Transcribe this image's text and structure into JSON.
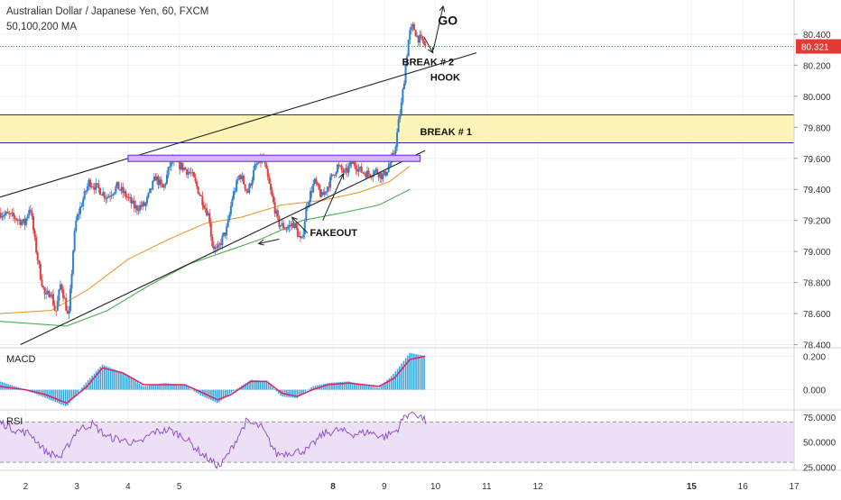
{
  "header": {
    "title": "Australian Dollar / Japanese Yen, 60, FXCM",
    "indicator": "50,100,200 MA"
  },
  "chart_data": {
    "type": "candlestick",
    "symbol": "AUDJPY",
    "timeframe": "60",
    "price_axis": {
      "ticks": [
        78.4,
        78.6,
        78.8,
        79.0,
        79.2,
        79.4,
        79.6,
        79.8,
        80.0,
        80.2,
        80.4
      ],
      "labels": [
        "78.400",
        "78.600",
        "78.800",
        "79.000",
        "79.200",
        "79.400",
        "79.600",
        "79.800",
        "80.000",
        "80.200",
        "80.400"
      ],
      "ylim": [
        78.38,
        80.62
      ]
    },
    "last_price": {
      "value": 80.321,
      "label": "80.321",
      "color": "#e53935"
    },
    "date_axis": {
      "xlim": [
        1.5,
        17.0
      ],
      "ticks": [
        {
          "x": 2,
          "label": "2",
          "bold": false
        },
        {
          "x": 3,
          "label": "3",
          "bold": false
        },
        {
          "x": 4,
          "label": "4",
          "bold": false
        },
        {
          "x": 5,
          "label": "5",
          "bold": false
        },
        {
          "x": 8,
          "label": "8",
          "bold": true
        },
        {
          "x": 9,
          "label": "9",
          "bold": false
        },
        {
          "x": 10,
          "label": "10",
          "bold": false
        },
        {
          "x": 11,
          "label": "11",
          "bold": false
        },
        {
          "x": 12,
          "label": "12",
          "bold": false
        },
        {
          "x": 15,
          "label": "15",
          "bold": true
        },
        {
          "x": 16,
          "label": "16",
          "bold": false
        },
        {
          "x": 17,
          "label": "17",
          "bold": false
        }
      ],
      "gap_positions": [
        5.5,
        12.5
      ]
    },
    "price_path": [
      [
        1.5,
        79.25
      ],
      [
        1.8,
        79.22
      ],
      [
        2.0,
        79.18
      ],
      [
        2.1,
        79.3
      ],
      [
        2.2,
        79.05
      ],
      [
        2.3,
        78.85
      ],
      [
        2.4,
        78.7
      ],
      [
        2.5,
        78.75
      ],
      [
        2.6,
        78.6
      ],
      [
        2.7,
        78.8
      ],
      [
        2.8,
        78.65
      ],
      [
        2.85,
        78.55
      ],
      [
        2.95,
        79.05
      ],
      [
        3.0,
        79.2
      ],
      [
        3.1,
        79.3
      ],
      [
        3.25,
        79.45
      ],
      [
        3.45,
        79.4
      ],
      [
        3.6,
        79.35
      ],
      [
        3.8,
        79.42
      ],
      [
        4.0,
        79.35
      ],
      [
        4.15,
        79.28
      ],
      [
        4.35,
        79.3
      ],
      [
        4.55,
        79.48
      ],
      [
        4.7,
        79.4
      ],
      [
        4.85,
        79.58
      ],
      [
        5.05,
        79.55
      ],
      [
        5.25,
        79.5
      ],
      [
        5.35,
        79.42
      ],
      [
        5.5,
        79.3
      ],
      [
        5.6,
        79.22
      ],
      [
        5.65,
        79.05
      ],
      [
        5.75,
        79.0
      ],
      [
        5.85,
        79.08
      ],
      [
        5.95,
        79.15
      ],
      [
        6.05,
        79.35
      ],
      [
        6.2,
        79.5
      ],
      [
        6.35,
        79.38
      ],
      [
        6.5,
        79.55
      ],
      [
        6.65,
        79.6
      ],
      [
        6.8,
        79.38
      ],
      [
        6.95,
        79.18
      ],
      [
        7.1,
        79.15
      ],
      [
        7.25,
        79.18
      ],
      [
        7.4,
        79.05
      ],
      [
        7.5,
        79.3
      ],
      [
        7.65,
        79.45
      ],
      [
        7.8,
        79.35
      ],
      [
        7.95,
        79.45
      ],
      [
        8.1,
        79.55
      ],
      [
        8.25,
        79.5
      ],
      [
        8.4,
        79.58
      ],
      [
        8.55,
        79.52
      ],
      [
        8.7,
        79.5
      ],
      [
        8.85,
        79.52
      ],
      [
        9.0,
        79.48
      ],
      [
        9.1,
        79.55
      ],
      [
        9.2,
        79.62
      ],
      [
        9.25,
        79.72
      ],
      [
        9.3,
        79.85
      ],
      [
        9.35,
        79.95
      ],
      [
        9.4,
        80.1
      ],
      [
        9.45,
        80.25
      ],
      [
        9.5,
        80.4
      ],
      [
        9.58,
        80.45
      ],
      [
        9.66,
        80.38
      ],
      [
        9.74,
        80.36
      ],
      [
        9.82,
        80.321
      ]
    ],
    "ma_series": [
      {
        "period": "50",
        "color": "#ef9a2c",
        "points": [
          [
            1.5,
            78.6
          ],
          [
            2.5,
            78.62
          ],
          [
            3.2,
            78.75
          ],
          [
            4.0,
            78.95
          ],
          [
            4.8,
            79.08
          ],
          [
            5.5,
            79.18
          ],
          [
            6.2,
            79.22
          ],
          [
            7.0,
            79.3
          ],
          [
            7.8,
            79.33
          ],
          [
            8.5,
            79.38
          ],
          [
            9.1,
            79.45
          ],
          [
            9.5,
            79.55
          ]
        ]
      },
      {
        "period": "200",
        "color": "#4caf50",
        "points": [
          [
            1.5,
            78.55
          ],
          [
            2.8,
            78.52
          ],
          [
            3.6,
            78.62
          ],
          [
            4.4,
            78.78
          ],
          [
            5.2,
            78.92
          ],
          [
            5.9,
            79.0
          ],
          [
            6.6,
            79.08
          ],
          [
            7.4,
            79.2
          ],
          [
            8.2,
            79.25
          ],
          [
            8.9,
            79.3
          ],
          [
            9.5,
            79.4
          ]
        ]
      }
    ],
    "lines": [
      {
        "name": "upper trendline",
        "from": [
          1.5,
          79.35
        ],
        "to": [
          10.8,
          80.28
        ]
      },
      {
        "name": "lower trendline",
        "from": [
          1.9,
          78.4
        ],
        "to": [
          9.8,
          79.65
        ]
      }
    ],
    "resistance_zone": {
      "from": [
        4.0,
        79.62
      ],
      "to": [
        9.7,
        79.58
      ]
    },
    "yellow_band": {
      "low": 79.7,
      "high": 79.88
    },
    "annotations": [
      {
        "text": "BREAK # 2",
        "x": 9.35,
        "y": 80.2
      },
      {
        "text": "BREAK # 1",
        "x": 9.7,
        "y": 79.75
      },
      {
        "text": "HOOK",
        "x": 9.9,
        "y": 80.1
      },
      {
        "text": "GO",
        "x": 10.05,
        "y": 80.46
      },
      {
        "text": "FAKEOUT",
        "x": 7.55,
        "y": 79.1
      }
    ],
    "arrows": [
      {
        "from": [
          6.95,
          79.08
        ],
        "to": [
          6.55,
          79.05
        ]
      },
      {
        "from": [
          7.5,
          79.12
        ],
        "to": [
          7.2,
          79.22
        ]
      },
      {
        "from": [
          7.8,
          79.2
        ],
        "to": [
          8.2,
          79.5
        ]
      },
      {
        "from": [
          9.78,
          80.38
        ],
        "to": [
          9.95,
          80.28
        ]
      },
      {
        "from": [
          9.96,
          80.3
        ],
        "to": [
          10.15,
          80.58
        ]
      }
    ],
    "macd": {
      "title": "MACD",
      "ticks": [
        0.2,
        0.0
      ],
      "labels": [
        "0.200",
        "0.000"
      ],
      "ylim": [
        -0.12,
        0.25
      ],
      "histogram_path": [
        [
          1.5,
          0.05
        ],
        [
          2.0,
          0.0
        ],
        [
          2.4,
          -0.05
        ],
        [
          2.8,
          -0.1
        ],
        [
          3.2,
          0.05
        ],
        [
          3.5,
          0.15
        ],
        [
          3.9,
          0.1
        ],
        [
          4.3,
          0.02
        ],
        [
          4.7,
          0.04
        ],
        [
          5.1,
          0.03
        ],
        [
          5.4,
          -0.03
        ],
        [
          5.75,
          -0.08
        ],
        [
          6.0,
          -0.02
        ],
        [
          6.4,
          0.06
        ],
        [
          6.7,
          0.05
        ],
        [
          7.0,
          -0.04
        ],
        [
          7.3,
          -0.05
        ],
        [
          7.6,
          0.02
        ],
        [
          7.9,
          0.04
        ],
        [
          8.3,
          0.05
        ],
        [
          8.6,
          0.03
        ],
        [
          8.9,
          0.01
        ],
        [
          9.2,
          0.1
        ],
        [
          9.5,
          0.22
        ],
        [
          9.8,
          0.2
        ]
      ],
      "signal_path": [
        [
          1.5,
          0.02
        ],
        [
          2.0,
          0.0
        ],
        [
          2.4,
          -0.03
        ],
        [
          2.8,
          -0.08
        ],
        [
          3.2,
          0.02
        ],
        [
          3.5,
          0.13
        ],
        [
          3.9,
          0.1
        ],
        [
          4.3,
          0.03
        ],
        [
          4.7,
          0.03
        ],
        [
          5.1,
          0.03
        ],
        [
          5.4,
          -0.01
        ],
        [
          5.75,
          -0.06
        ],
        [
          6.0,
          -0.03
        ],
        [
          6.4,
          0.05
        ],
        [
          6.7,
          0.05
        ],
        [
          7.0,
          -0.02
        ],
        [
          7.3,
          -0.04
        ],
        [
          7.6,
          0.0
        ],
        [
          7.9,
          0.03
        ],
        [
          8.3,
          0.04
        ],
        [
          8.6,
          0.03
        ],
        [
          8.9,
          0.02
        ],
        [
          9.2,
          0.07
        ],
        [
          9.5,
          0.18
        ],
        [
          9.8,
          0.2
        ]
      ]
    },
    "rsi": {
      "title": "RSI",
      "ticks": [
        75,
        50,
        25
      ],
      "labels": [
        "75.0000",
        "50.0000",
        "25.0000"
      ],
      "ylim": [
        22,
        82
      ],
      "band": [
        30,
        70
      ],
      "path": [
        [
          1.5,
          70
        ],
        [
          1.8,
          62
        ],
        [
          2.1,
          58
        ],
        [
          2.4,
          40
        ],
        [
          2.7,
          35
        ],
        [
          3.0,
          62
        ],
        [
          3.3,
          68
        ],
        [
          3.6,
          55
        ],
        [
          3.9,
          52
        ],
        [
          4.2,
          48
        ],
        [
          4.5,
          60
        ],
        [
          4.8,
          62
        ],
        [
          5.1,
          55
        ],
        [
          5.4,
          40
        ],
        [
          5.7,
          28
        ],
        [
          5.8,
          26
        ],
        [
          6.0,
          42
        ],
        [
          6.3,
          70
        ],
        [
          6.6,
          65
        ],
        [
          6.9,
          38
        ],
        [
          7.2,
          40
        ],
        [
          7.5,
          42
        ],
        [
          7.8,
          58
        ],
        [
          8.1,
          62
        ],
        [
          8.4,
          58
        ],
        [
          8.7,
          60
        ],
        [
          9.0,
          55
        ],
        [
          9.25,
          62
        ],
        [
          9.4,
          76
        ],
        [
          9.55,
          80
        ],
        [
          9.7,
          76
        ],
        [
          9.82,
          70
        ]
      ]
    },
    "colors": {
      "up": "#2f80d1",
      "down": "#e04040",
      "trendline": "#222222",
      "zone_fill": "#d7b8ff",
      "zone_stroke": "#7c3aed",
      "band_fill": "#fdf5b8",
      "band_line": "#2a2ab0",
      "rsi_fill": "#ece0f7",
      "rsi_line": "#8b44c7",
      "macd_line": "#e0236c",
      "macd_hist": "#35a7e0"
    }
  }
}
